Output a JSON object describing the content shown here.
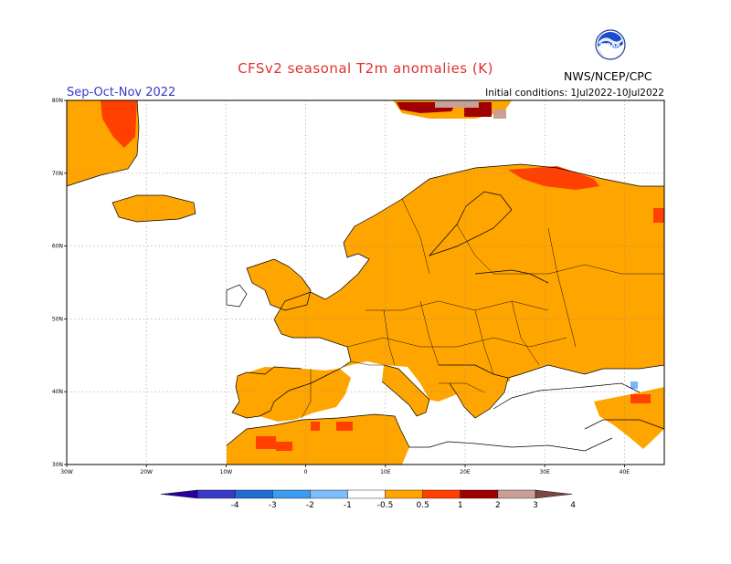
{
  "header": {
    "title": "CFSv2 seasonal T2m anomalies (K)",
    "season": "Sep-Oct-Nov 2022",
    "init": "Initial conditions: 1Jul2022-10Jul2022",
    "agency": "NWS/NCEP/CPC",
    "logo_text": "NOAA"
  },
  "map": {
    "lon_range": [
      -30,
      45
    ],
    "lat_range": [
      30,
      80
    ],
    "lon_ticks": [
      {
        "value": -30,
        "label": "30W"
      },
      {
        "value": -20,
        "label": "20W"
      },
      {
        "value": -10,
        "label": "10W"
      },
      {
        "value": 0,
        "label": "0"
      },
      {
        "value": 10,
        "label": "10E"
      },
      {
        "value": 20,
        "label": "20E"
      },
      {
        "value": 30,
        "label": "30E"
      },
      {
        "value": 40,
        "label": "40E"
      }
    ],
    "lat_ticks": [
      {
        "value": 30,
        "label": "30N"
      },
      {
        "value": 40,
        "label": "40N"
      },
      {
        "value": 50,
        "label": "50N"
      },
      {
        "value": 60,
        "label": "60N"
      },
      {
        "value": 70,
        "label": "70N"
      },
      {
        "value": 80,
        "label": "80N"
      }
    ],
    "grid": "dotted",
    "colors": {
      "warm1": "#ffa500",
      "warm2": "#ff4000",
      "warm3": "#a00000",
      "warm4": "#c8a098",
      "cool": "#77b5fe"
    }
  },
  "colorbar": {
    "tick_labels": [
      "-4",
      "-3",
      "-2",
      "-1",
      "-0.5",
      "0.5",
      "1",
      "2",
      "3",
      "4"
    ],
    "colors": [
      "#2a00a0",
      "#3a3ac8",
      "#1e6ed2",
      "#3c9cf0",
      "#7cbcff",
      "#ffffff",
      "#ffa500",
      "#ff4000",
      "#a00000",
      "#c8a098",
      "#7a4840"
    ]
  }
}
